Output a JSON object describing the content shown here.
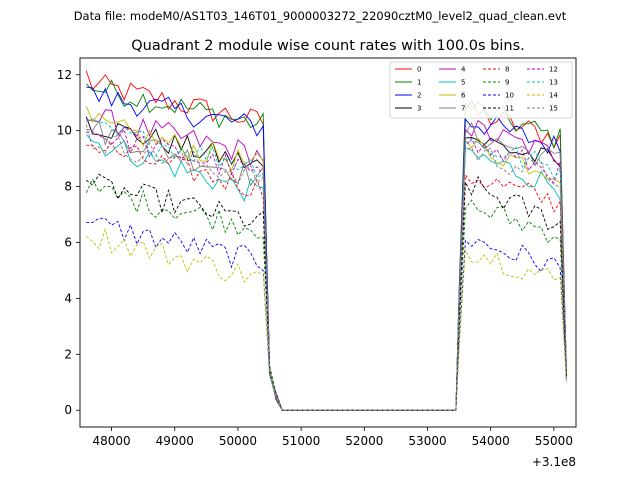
{
  "file_caption": "Data file: modeM0/AS1T03_146T01_9000003272_22090cztM0_level2_quad_clean.evt",
  "chart_data": {
    "type": "line",
    "title": "Quadrant 2 module wise count rates with 100.0s bins.",
    "xlabel": "",
    "ylabel": "",
    "x_offset_label": "+3.1e8",
    "xlim": [
      47500,
      55350
    ],
    "ylim": [
      -0.6,
      12.6
    ],
    "xticks": [
      48000,
      49000,
      50000,
      51000,
      52000,
      53000,
      54000,
      55000
    ],
    "yticks": [
      0,
      2,
      4,
      6,
      8,
      10,
      12
    ],
    "legend_position": "upper-right",
    "bin_width": 100,
    "segments": [
      {
        "start": 47600,
        "end": 50600
      },
      {
        "start": 53500,
        "end": 55200
      }
    ],
    "gap_value": 0,
    "series": [
      {
        "name": "0",
        "color": "#ff0000",
        "dash": "solid",
        "level1": 11.0,
        "slope1": -0.5,
        "level2": 10.4,
        "slope2": -0.4
      },
      {
        "name": "1",
        "color": "#008000",
        "dash": "solid",
        "level1": 10.9,
        "slope1": -0.5,
        "level2": 10.6,
        "slope2": -0.5
      },
      {
        "name": "2",
        "color": "#0000ff",
        "dash": "solid",
        "level1": 10.6,
        "slope1": -0.4,
        "level2": 10.1,
        "slope2": -0.4
      },
      {
        "name": "3",
        "color": "#000000",
        "dash": "solid",
        "level1": 9.6,
        "slope1": -0.6,
        "level2": 9.5,
        "slope2": -0.4
      },
      {
        "name": "4",
        "color": "#bf00bf",
        "dash": "solid",
        "level1": 9.8,
        "slope1": -0.5,
        "level2": 9.8,
        "slope2": -0.4
      },
      {
        "name": "5",
        "color": "#00bfbf",
        "dash": "solid",
        "level1": 9.0,
        "slope1": -0.8,
        "level2": 8.9,
        "slope2": -0.5
      },
      {
        "name": "6",
        "color": "#bfbf00",
        "dash": "solid",
        "level1": 9.6,
        "slope1": -0.6,
        "level2": 9.2,
        "slope2": -0.4
      },
      {
        "name": "7",
        "color": "#808080",
        "dash": "solid",
        "level1": 9.4,
        "slope1": -0.7,
        "level2": 9.6,
        "slope2": -0.4
      },
      {
        "name": "8",
        "color": "#ff0000",
        "dash": "dashed",
        "level1": 8.8,
        "slope1": -0.6,
        "level2": 8.1,
        "slope2": -0.4
      },
      {
        "name": "9",
        "color": "#008000",
        "dash": "dashed",
        "level1": 7.2,
        "slope1": -0.5,
        "level2": 7.0,
        "slope2": -0.4
      },
      {
        "name": "10",
        "color": "#0000ff",
        "dash": "dashed",
        "level1": 6.0,
        "slope1": -0.5,
        "level2": 5.8,
        "slope2": -0.4
      },
      {
        "name": "11",
        "color": "#000000",
        "dash": "dashed",
        "level1": 7.4,
        "slope1": -0.5,
        "level2": 7.8,
        "slope2": -0.6
      },
      {
        "name": "12",
        "color": "#bf00bf",
        "dash": "dashed",
        "level1": 9.3,
        "slope1": -0.6,
        "level2": 9.2,
        "slope2": -0.4
      },
      {
        "name": "13",
        "color": "#00bfbf",
        "dash": "dashed",
        "level1": 9.4,
        "slope1": -0.5,
        "level2": 9.3,
        "slope2": -0.4
      },
      {
        "name": "14",
        "color": "#bfbf00",
        "dash": "dashed",
        "level1": 5.6,
        "slope1": -0.6,
        "level2": 5.5,
        "slope2": -0.5
      },
      {
        "name": "15",
        "color": "#808080",
        "dash": "dashed",
        "level1": 9.0,
        "slope1": -0.5,
        "level2": 9.0,
        "slope2": -0.4
      }
    ]
  }
}
